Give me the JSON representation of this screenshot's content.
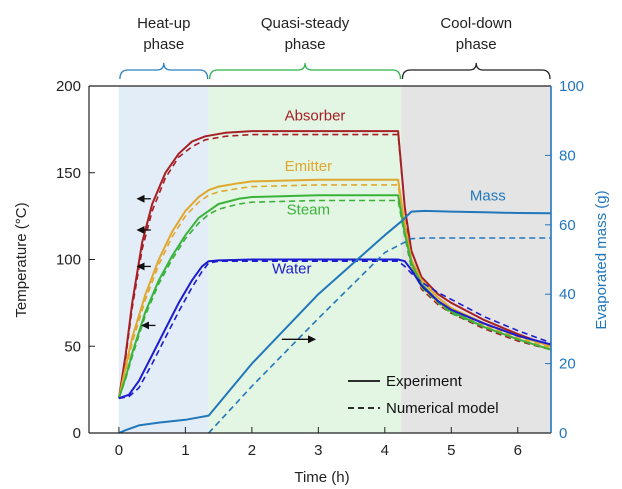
{
  "chart_data": {
    "type": "line",
    "xlabel": "Time (h)",
    "ylabel": "Temperature (°C)",
    "y2label": "Evaporated mass (g)",
    "xlim": [
      -0.45,
      6.5
    ],
    "ylim": [
      0,
      200
    ],
    "y2lim": [
      0,
      100
    ],
    "xticks": [
      0,
      1,
      2,
      3,
      4,
      5,
      6
    ],
    "yticks": [
      0,
      50,
      100,
      150,
      200
    ],
    "y2ticks": [
      0,
      20,
      40,
      60,
      80,
      100
    ],
    "phases": [
      {
        "label_lines": [
          "Heat-up",
          "phase"
        ],
        "start": 0,
        "end": 1.35,
        "fill": "#e3edf8",
        "bracket": "#2a7fc1"
      },
      {
        "label_lines": [
          "Quasi-steady",
          "phase"
        ],
        "start": 1.35,
        "end": 4.25,
        "fill": "#e3f5e3",
        "bracket": "#2db34a"
      },
      {
        "label_lines": [
          "Cool-down",
          "phase"
        ],
        "start": 4.25,
        "end": 6.5,
        "fill": "#e4e4e4",
        "bracket": "#222222"
      }
    ],
    "series": [
      {
        "name": "Absorber",
        "axis": "left",
        "color": "#a61f24",
        "experiment": [
          [
            0,
            20
          ],
          [
            0.1,
            45
          ],
          [
            0.2,
            75
          ],
          [
            0.35,
            110
          ],
          [
            0.5,
            132
          ],
          [
            0.7,
            150
          ],
          [
            0.9,
            161
          ],
          [
            1.1,
            168
          ],
          [
            1.3,
            171
          ],
          [
            1.6,
            173
          ],
          [
            2,
            174
          ],
          [
            3,
            174
          ],
          [
            4,
            174
          ],
          [
            4.2,
            174
          ],
          [
            4.3,
            130
          ],
          [
            4.4,
            105
          ],
          [
            4.55,
            90
          ],
          [
            4.8,
            80
          ],
          [
            5,
            75
          ],
          [
            5.5,
            65
          ],
          [
            6,
            57
          ],
          [
            6.5,
            50
          ]
        ],
        "model": [
          [
            0,
            20
          ],
          [
            0.1,
            43
          ],
          [
            0.2,
            72
          ],
          [
            0.35,
            106
          ],
          [
            0.5,
            128
          ],
          [
            0.7,
            147
          ],
          [
            0.9,
            159
          ],
          [
            1.1,
            165
          ],
          [
            1.3,
            169
          ],
          [
            1.6,
            171
          ],
          [
            2,
            172
          ],
          [
            3,
            172
          ],
          [
            4,
            172
          ],
          [
            4.2,
            172
          ],
          [
            4.3,
            130
          ],
          [
            4.4,
            98
          ],
          [
            4.55,
            83
          ],
          [
            4.8,
            74
          ],
          [
            5,
            69
          ],
          [
            5.5,
            60
          ],
          [
            6,
            53
          ],
          [
            6.5,
            48
          ]
        ]
      },
      {
        "name": "Emitter",
        "axis": "left",
        "color": "#e0a82e",
        "experiment": [
          [
            0,
            20
          ],
          [
            0.1,
            38
          ],
          [
            0.2,
            55
          ],
          [
            0.4,
            80
          ],
          [
            0.6,
            100
          ],
          [
            0.8,
            116
          ],
          [
            1,
            128
          ],
          [
            1.2,
            136
          ],
          [
            1.35,
            140
          ],
          [
            1.5,
            142
          ],
          [
            1.8,
            144
          ],
          [
            2,
            145
          ],
          [
            3,
            146
          ],
          [
            4.2,
            146
          ],
          [
            4.3,
            120
          ],
          [
            4.4,
            100
          ],
          [
            4.55,
            88
          ],
          [
            4.8,
            78
          ],
          [
            5,
            72
          ],
          [
            5.5,
            63
          ],
          [
            6,
            56
          ],
          [
            6.5,
            50
          ]
        ],
        "model": [
          [
            0,
            20
          ],
          [
            0.1,
            36
          ],
          [
            0.2,
            52
          ],
          [
            0.4,
            77
          ],
          [
            0.6,
            97
          ],
          [
            0.8,
            113
          ],
          [
            1,
            125
          ],
          [
            1.2,
            133
          ],
          [
            1.35,
            137
          ],
          [
            1.5,
            139
          ],
          [
            1.8,
            141
          ],
          [
            2,
            142
          ],
          [
            3,
            143
          ],
          [
            4.2,
            143
          ],
          [
            4.3,
            118
          ],
          [
            4.4,
            96
          ],
          [
            4.55,
            84
          ],
          [
            4.8,
            75
          ],
          [
            5,
            70
          ],
          [
            5.5,
            62
          ],
          [
            6,
            55
          ],
          [
            6.5,
            49
          ]
        ]
      },
      {
        "name": "Steam",
        "axis": "left",
        "color": "#3bb33b",
        "experiment": [
          [
            0,
            20
          ],
          [
            0.1,
            32
          ],
          [
            0.2,
            46
          ],
          [
            0.4,
            70
          ],
          [
            0.6,
            88
          ],
          [
            0.8,
            102
          ],
          [
            1,
            114
          ],
          [
            1.2,
            124
          ],
          [
            1.35,
            128
          ],
          [
            1.5,
            132
          ],
          [
            1.8,
            135
          ],
          [
            2,
            136
          ],
          [
            3,
            137
          ],
          [
            4.2,
            137
          ],
          [
            4.3,
            115
          ],
          [
            4.4,
            98
          ],
          [
            4.55,
            86
          ],
          [
            4.8,
            76
          ],
          [
            5,
            70
          ],
          [
            5.5,
            61
          ],
          [
            6,
            54
          ],
          [
            6.5,
            48
          ]
        ],
        "model": [
          [
            0,
            20
          ],
          [
            0.1,
            31
          ],
          [
            0.2,
            44
          ],
          [
            0.4,
            68
          ],
          [
            0.6,
            86
          ],
          [
            0.8,
            100
          ],
          [
            1,
            112
          ],
          [
            1.2,
            121
          ],
          [
            1.35,
            126
          ],
          [
            1.5,
            129
          ],
          [
            1.8,
            132
          ],
          [
            2,
            133
          ],
          [
            3,
            134
          ],
          [
            4.2,
            134
          ],
          [
            4.3,
            113
          ],
          [
            4.4,
            95
          ],
          [
            4.55,
            84
          ],
          [
            4.8,
            75
          ],
          [
            5,
            69
          ],
          [
            5.5,
            61
          ],
          [
            6,
            54
          ],
          [
            6.5,
            48
          ]
        ]
      },
      {
        "name": "Water",
        "axis": "left",
        "color": "#1c1ccf",
        "experiment": [
          [
            0,
            20
          ],
          [
            0.15,
            22
          ],
          [
            0.3,
            30
          ],
          [
            0.5,
            45
          ],
          [
            0.7,
            60
          ],
          [
            0.9,
            75
          ],
          [
            1.1,
            88
          ],
          [
            1.25,
            96
          ],
          [
            1.35,
            99
          ],
          [
            1.5,
            99.5
          ],
          [
            2,
            100
          ],
          [
            3,
            100
          ],
          [
            4.2,
            100
          ],
          [
            4.3,
            99
          ],
          [
            4.4,
            94
          ],
          [
            4.55,
            85
          ],
          [
            4.8,
            76
          ],
          [
            5,
            71
          ],
          [
            5.5,
            63
          ],
          [
            6,
            56
          ],
          [
            6.5,
            51
          ]
        ],
        "model": [
          [
            0,
            20
          ],
          [
            0.15,
            21
          ],
          [
            0.3,
            26
          ],
          [
            0.5,
            40
          ],
          [
            0.7,
            55
          ],
          [
            0.9,
            70
          ],
          [
            1.1,
            84
          ],
          [
            1.25,
            93
          ],
          [
            1.35,
            98
          ],
          [
            1.5,
            99
          ],
          [
            2,
            99
          ],
          [
            3,
            99
          ],
          [
            4.2,
            99
          ],
          [
            4.3,
            96
          ],
          [
            4.4,
            92
          ],
          [
            4.55,
            87
          ],
          [
            4.8,
            81
          ],
          [
            5,
            77
          ],
          [
            5.5,
            67
          ],
          [
            6,
            59
          ],
          [
            6.5,
            52
          ]
        ]
      },
      {
        "name": "Mass",
        "axis": "right",
        "color": "#2277bb",
        "experiment": [
          [
            0,
            0
          ],
          [
            0.1,
            0.8
          ],
          [
            0.3,
            2.2
          ],
          [
            0.6,
            3
          ],
          [
            1,
            3.8
          ],
          [
            1.35,
            5
          ],
          [
            2,
            20
          ],
          [
            3,
            40
          ],
          [
            4,
            57
          ],
          [
            4.25,
            61
          ],
          [
            4.4,
            63.8
          ],
          [
            4.6,
            64
          ],
          [
            5,
            63.8
          ],
          [
            5.5,
            63.6
          ],
          [
            6,
            63.4
          ],
          [
            6.5,
            63.3
          ]
        ],
        "model": [
          [
            1.35,
            0
          ],
          [
            2,
            13.5
          ],
          [
            3,
            33
          ],
          [
            4,
            52
          ],
          [
            4.4,
            56
          ],
          [
            4.6,
            56.2
          ],
          [
            6.5,
            56.2
          ]
        ]
      }
    ],
    "annotations": [
      {
        "from": [
          0.48,
          135
        ],
        "to": [
          0.28,
          135
        ],
        "axis": "left"
      },
      {
        "from": [
          0.48,
          117
        ],
        "to": [
          0.28,
          117
        ],
        "axis": "left"
      },
      {
        "from": [
          0.48,
          96
        ],
        "to": [
          0.28,
          96
        ],
        "axis": "left"
      },
      {
        "from": [
          0.55,
          62
        ],
        "to": [
          0.35,
          62
        ],
        "axis": "left"
      },
      {
        "from": [
          2.45,
          27
        ],
        "to": [
          2.95,
          27
        ],
        "axis": "right"
      }
    ],
    "labels": [
      {
        "text": "Absorber",
        "x": 2.95,
        "y": 180,
        "axis": "left",
        "color": "#a61f24"
      },
      {
        "text": "Emitter",
        "x": 2.85,
        "y": 151,
        "axis": "left",
        "color": "#e0a82e"
      },
      {
        "text": "Steam",
        "x": 2.85,
        "y": 126,
        "axis": "left",
        "color": "#3bb33b"
      },
      {
        "text": "Water",
        "x": 2.6,
        "y": 92,
        "axis": "left",
        "color": "#1c1ccf"
      },
      {
        "text": "Mass",
        "x": 5.55,
        "y": 67,
        "axis": "right",
        "color": "#2277bb"
      }
    ],
    "legend": {
      "position": "bottom-right",
      "entries": [
        {
          "label": "Experiment",
          "style": "solid"
        },
        {
          "label": "Numerical model",
          "style": "dashed"
        }
      ]
    },
    "colors": {
      "axis": "#222222",
      "right_axis": "#2277bb"
    }
  }
}
